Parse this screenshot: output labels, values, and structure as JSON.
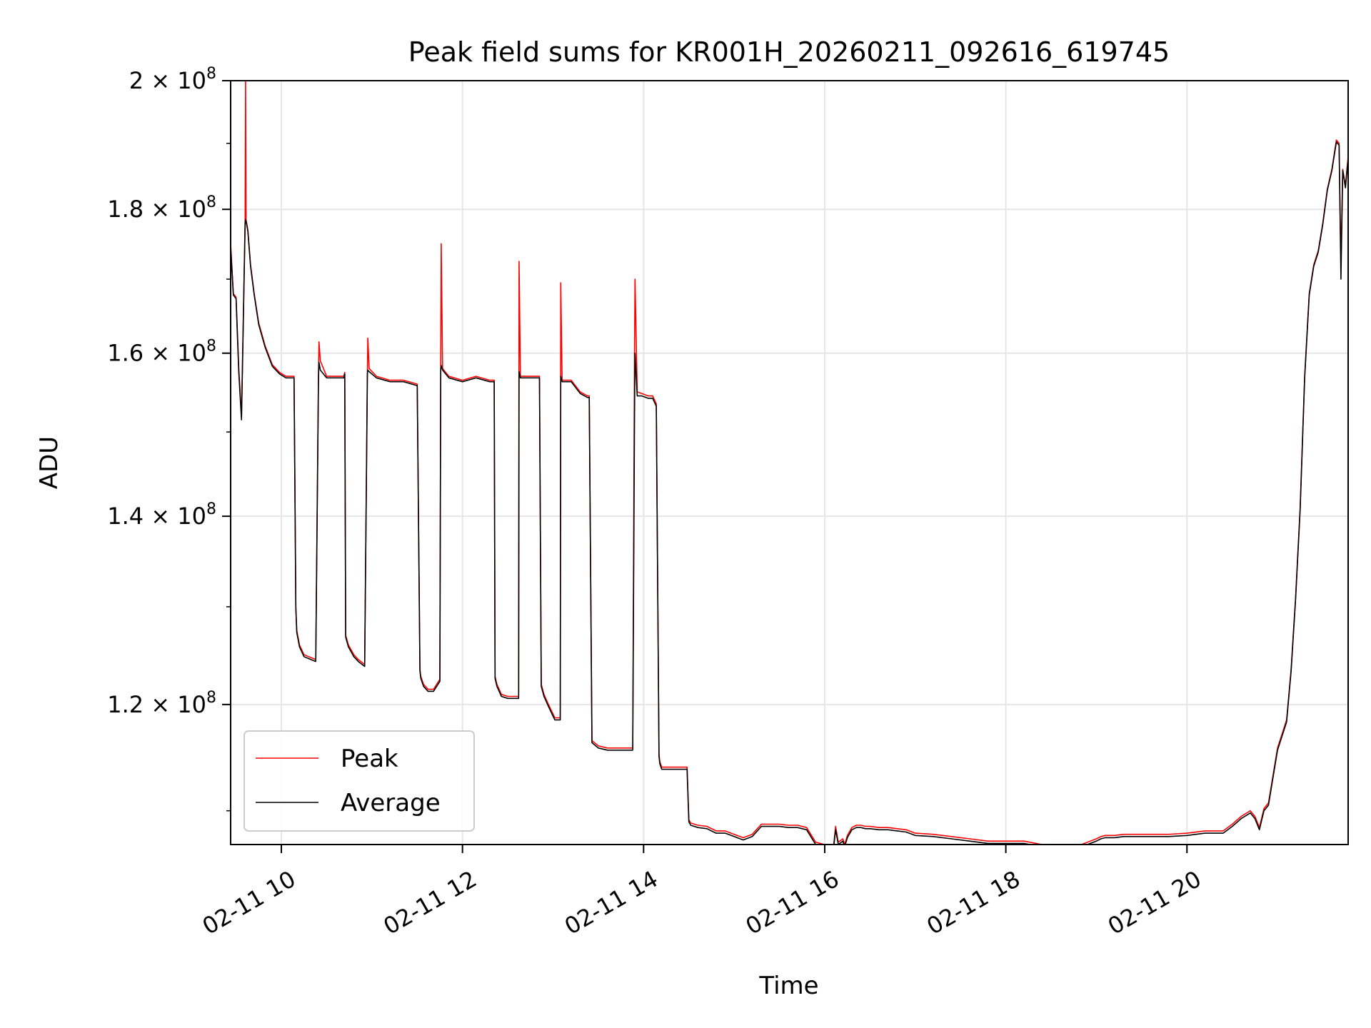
{
  "chart_data": {
    "type": "line",
    "title": "Peak field sums for KR001H_20260211_092616_619745",
    "xlabel": "Time",
    "ylabel": "ADU",
    "yscale": "log",
    "xlim_hours": [
      9.44,
      21.78
    ],
    "ylim": [
      107000000,
      200000000
    ],
    "grid": true,
    "legend_location": "lower-left",
    "x_tick_hours": [
      10,
      12,
      14,
      16,
      18,
      20
    ],
    "x_tick_labels": [
      "02-11 10",
      "02-11 12",
      "02-11 14",
      "02-11 16",
      "02-11 18",
      "02-11 20"
    ],
    "y_tick_values": [
      120000000,
      140000000,
      160000000,
      180000000,
      200000000
    ],
    "y_tick_labels": [
      {
        "mantissa": "1.2 × 10",
        "exp": "8"
      },
      {
        "mantissa": "1.4 × 10",
        "exp": "8"
      },
      {
        "mantissa": "1.6 × 10",
        "exp": "8"
      },
      {
        "mantissa": "1.8 × 10",
        "exp": "8"
      },
      {
        "mantissa": "2 × 10",
        "exp": "8"
      }
    ],
    "colors": {
      "peak": "#ff0000",
      "average": "#000000",
      "grid": "#e6e6e6"
    },
    "series": [
      {
        "name": "Peak",
        "x_hours": [
          9.44,
          9.47,
          9.5,
          9.53,
          9.56,
          9.6,
          9.605,
          9.61,
          9.63,
          9.66,
          9.7,
          9.75,
          9.82,
          9.9,
          9.98,
          10.05,
          10.14,
          10.16,
          10.17,
          10.2,
          10.25,
          10.3,
          10.38,
          10.41,
          10.415,
          10.43,
          10.5,
          10.6,
          10.69,
          10.7,
          10.71,
          10.74,
          10.8,
          10.85,
          10.92,
          10.95,
          10.955,
          10.97,
          11.05,
          11.2,
          11.35,
          11.5,
          11.53,
          11.54,
          11.57,
          11.62,
          11.68,
          11.75,
          11.76,
          11.765,
          11.78,
          11.85,
          12.0,
          12.15,
          12.3,
          12.35,
          12.36,
          12.38,
          12.43,
          12.5,
          12.6,
          12.62,
          12.625,
          12.64,
          12.75,
          12.85,
          12.87,
          12.9,
          12.95,
          13.02,
          13.08,
          13.085,
          13.1,
          13.2,
          13.3,
          13.38,
          13.4,
          13.43,
          13.5,
          13.6,
          13.75,
          13.88,
          13.9,
          13.905,
          13.93,
          13.98,
          14.05,
          14.1,
          14.14,
          14.17,
          14.18,
          14.2,
          14.25,
          14.35,
          14.48,
          14.5,
          14.52,
          14.6,
          14.7,
          14.8,
          14.9,
          15.0,
          15.1,
          15.2,
          15.3,
          15.4,
          15.5,
          15.6,
          15.7,
          15.8,
          15.9,
          16.0,
          16.1,
          16.12,
          16.15,
          16.2,
          16.22,
          16.25,
          16.3,
          16.35,
          16.4,
          16.45,
          16.5,
          16.6,
          16.7,
          16.8,
          16.9,
          17.0,
          17.2,
          17.4,
          17.6,
          17.8,
          18.0,
          18.2,
          18.4,
          18.6,
          18.8,
          19.0,
          19.05,
          19.1,
          19.2,
          19.3,
          19.4,
          19.6,
          19.8,
          20.0,
          20.2,
          20.4,
          20.5,
          20.6,
          20.7,
          20.75,
          20.8,
          20.85,
          20.9,
          21.0,
          21.1,
          21.15,
          21.2,
          21.25,
          21.3,
          21.35,
          21.4,
          21.45,
          21.5,
          21.55,
          21.6,
          21.65,
          21.68,
          21.7,
          21.72,
          21.75,
          21.78
        ],
        "values": [
          175000000,
          168000000,
          167500000,
          158000000,
          152000000,
          178500000,
          200000000,
          178500000,
          177000000,
          172000000,
          168000000,
          164000000,
          161000000,
          158500000,
          157500000,
          157000000,
          157000000,
          130000000,
          127500000,
          126000000,
          125000000,
          124800000,
          124500000,
          157000000,
          161500000,
          159000000,
          157000000,
          157000000,
          157000000,
          157500000,
          127000000,
          126000000,
          125000000,
          124500000,
          124000000,
          157500000,
          162000000,
          158000000,
          157000000,
          156500000,
          156500000,
          156000000,
          123500000,
          122800000,
          122000000,
          121500000,
          121500000,
          122500000,
          158000000,
          175000000,
          158000000,
          157000000,
          156500000,
          157000000,
          156500000,
          156500000,
          122800000,
          122000000,
          121000000,
          120800000,
          120800000,
          120800000,
          172500000,
          157000000,
          157000000,
          157000000,
          122000000,
          121000000,
          120000000,
          118700000,
          118700000,
          169500000,
          156500000,
          156500000,
          155000000,
          154500000,
          154500000,
          116500000,
          116000000,
          115800000,
          115800000,
          115800000,
          160000000,
          170000000,
          155000000,
          154800000,
          154500000,
          154500000,
          153500000,
          115200000,
          114500000,
          114000000,
          114000000,
          114000000,
          114000000,
          109200000,
          108900000,
          108700000,
          108600000,
          108200000,
          108200000,
          107900000,
          107600000,
          107900000,
          108800000,
          108800000,
          108800000,
          108700000,
          108700000,
          108500000,
          107200000,
          107000000,
          107000000,
          108600000,
          107200000,
          107500000,
          107000000,
          107800000,
          108500000,
          108700000,
          108700000,
          108600000,
          108600000,
          108500000,
          108500000,
          108400000,
          108300000,
          108000000,
          107900000,
          107700000,
          107500000,
          107300000,
          107300000,
          107300000,
          107000000,
          106800000,
          106900000,
          107500000,
          107700000,
          107800000,
          107800000,
          107900000,
          107900000,
          107900000,
          107900000,
          108000000,
          108200000,
          108200000,
          108800000,
          109500000,
          110000000,
          109500000,
          108500000,
          110200000,
          110700000,
          115800000,
          118500000,
          123500000,
          131000000,
          141000000,
          157000000,
          168000000,
          172000000,
          174000000,
          178000000,
          183000000,
          186000000,
          190500000,
          190000000,
          172000000,
          186000000,
          183500000,
          188000000
        ]
      },
      {
        "name": "Average",
        "x_hours": [
          9.44,
          9.47,
          9.5,
          9.53,
          9.56,
          9.6,
          9.605,
          9.61,
          9.63,
          9.66,
          9.7,
          9.75,
          9.82,
          9.9,
          9.98,
          10.05,
          10.14,
          10.16,
          10.17,
          10.2,
          10.25,
          10.3,
          10.38,
          10.41,
          10.415,
          10.43,
          10.5,
          10.6,
          10.69,
          10.7,
          10.71,
          10.74,
          10.8,
          10.85,
          10.92,
          10.95,
          10.955,
          10.97,
          11.05,
          11.2,
          11.35,
          11.5,
          11.53,
          11.54,
          11.57,
          11.62,
          11.68,
          11.75,
          11.76,
          11.765,
          11.78,
          11.85,
          12.0,
          12.15,
          12.3,
          12.35,
          12.36,
          12.38,
          12.43,
          12.5,
          12.6,
          12.62,
          12.625,
          12.64,
          12.75,
          12.85,
          12.87,
          12.9,
          12.95,
          13.02,
          13.08,
          13.085,
          13.1,
          13.2,
          13.3,
          13.38,
          13.4,
          13.43,
          13.5,
          13.6,
          13.75,
          13.88,
          13.9,
          13.905,
          13.93,
          13.98,
          14.05,
          14.1,
          14.14,
          14.17,
          14.18,
          14.2,
          14.25,
          14.35,
          14.48,
          14.5,
          14.52,
          14.6,
          14.7,
          14.8,
          14.9,
          15.0,
          15.1,
          15.2,
          15.3,
          15.4,
          15.5,
          15.6,
          15.7,
          15.8,
          15.9,
          16.0,
          16.1,
          16.12,
          16.15,
          16.2,
          16.22,
          16.25,
          16.3,
          16.35,
          16.4,
          16.45,
          16.5,
          16.6,
          16.7,
          16.8,
          16.9,
          17.0,
          17.2,
          17.4,
          17.6,
          17.8,
          18.0,
          18.2,
          18.4,
          18.6,
          18.8,
          19.0,
          19.05,
          19.1,
          19.2,
          19.3,
          19.4,
          19.6,
          19.8,
          20.0,
          20.2,
          20.4,
          20.5,
          20.6,
          20.7,
          20.75,
          20.8,
          20.85,
          20.9,
          21.0,
          21.1,
          21.15,
          21.2,
          21.25,
          21.3,
          21.35,
          21.4,
          21.45,
          21.5,
          21.55,
          21.6,
          21.65,
          21.68,
          21.7,
          21.72,
          21.75,
          21.78
        ],
        "values": [
          174500000,
          167800000,
          167300000,
          157500000,
          151500000,
          178000000,
          178500000,
          178200000,
          176800000,
          171800000,
          167800000,
          163800000,
          160800000,
          158300000,
          157300000,
          156800000,
          156800000,
          129800000,
          127300000,
          125800000,
          124800000,
          124600000,
          124300000,
          156800000,
          158800000,
          157800000,
          156800000,
          156800000,
          156800000,
          157300000,
          126800000,
          125800000,
          124800000,
          124300000,
          123800000,
          157300000,
          157800000,
          157600000,
          156800000,
          156300000,
          156300000,
          155800000,
          123300000,
          122600000,
          121800000,
          121300000,
          121300000,
          122300000,
          157800000,
          158400000,
          157800000,
          156800000,
          156300000,
          156800000,
          156300000,
          156300000,
          122600000,
          121800000,
          120800000,
          120600000,
          120600000,
          120600000,
          157600000,
          156800000,
          156800000,
          156800000,
          121800000,
          120800000,
          119800000,
          118500000,
          118500000,
          157000000,
          156300000,
          156300000,
          154800000,
          154300000,
          154300000,
          116300000,
          115800000,
          115600000,
          115600000,
          115600000,
          152000000,
          160000000,
          154500000,
          154500000,
          154200000,
          154200000,
          153200000,
          115000000,
          114300000,
          113800000,
          113800000,
          113800000,
          113800000,
          109000000,
          108700000,
          108500000,
          108400000,
          108000000,
          108000000,
          107700000,
          107400000,
          107700000,
          108600000,
          108600000,
          108600000,
          108500000,
          108500000,
          108300000,
          107000000,
          106800000,
          106800000,
          108300000,
          107000000,
          107300000,
          106800000,
          107600000,
          108300000,
          108500000,
          108500000,
          108400000,
          108400000,
          108300000,
          108300000,
          108200000,
          108100000,
          107800000,
          107700000,
          107500000,
          107300000,
          107100000,
          107100000,
          107100000,
          106800000,
          106600000,
          106700000,
          107300000,
          107500000,
          107600000,
          107600000,
          107700000,
          107700000,
          107700000,
          107700000,
          107800000,
          108000000,
          108000000,
          108600000,
          109300000,
          109800000,
          109300000,
          108300000,
          110000000,
          110500000,
          115600000,
          118300000,
          123300000,
          130800000,
          140800000,
          156800000,
          167800000,
          171800000,
          173800000,
          177800000,
          182800000,
          185800000,
          190200000,
          189700000,
          170000000,
          185800000,
          183200000,
          187700000
        ]
      }
    ]
  }
}
